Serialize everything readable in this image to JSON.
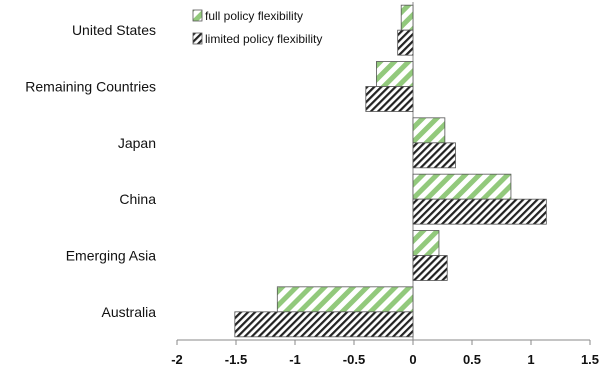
{
  "chart_data": {
    "type": "bar",
    "orientation": "horizontal",
    "categories": [
      "United States",
      "Remaining Countries",
      "Japan",
      "China",
      "Emerging Asia",
      "Australia"
    ],
    "series": [
      {
        "name": "full policy flexibility",
        "values": [
          -0.1,
          -0.31,
          0.27,
          0.83,
          0.22,
          -1.15
        ],
        "pattern": "green-diagonal-stripes",
        "color": "#92c97c"
      },
      {
        "name": "limited policy flexibility",
        "values": [
          -0.13,
          -0.4,
          0.36,
          1.13,
          0.29,
          -1.51
        ],
        "pattern": "black-diagonal-hatch",
        "color": "#222222"
      }
    ],
    "xlim": [
      -2,
      1.5
    ],
    "xticks": [
      -2,
      -1.5,
      -1,
      -0.5,
      0,
      0.5,
      1,
      1.5
    ],
    "xtick_labels": [
      "-2",
      "-1.5",
      "-1",
      "-0.5",
      "0",
      "0.5",
      "1",
      "1.5"
    ],
    "title": "",
    "xlabel": "",
    "ylabel": "",
    "grid": false,
    "legend_position": "top-left"
  }
}
